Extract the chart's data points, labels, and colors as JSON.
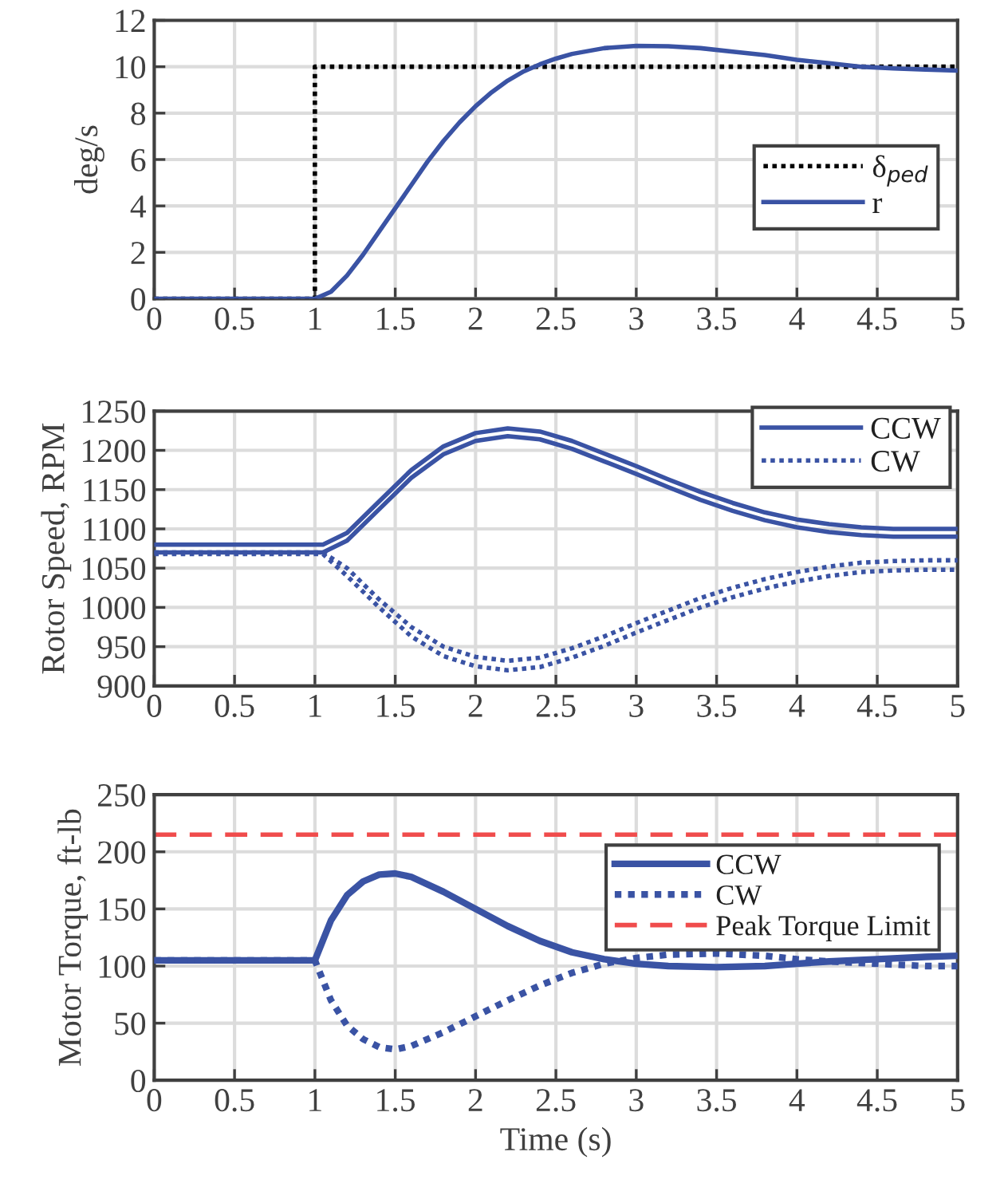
{
  "chart_data": [
    {
      "type": "line",
      "ylabel": "deg/s",
      "xlim": [
        0,
        5
      ],
      "ylim": [
        0,
        12
      ],
      "xticks": [
        0,
        0.5,
        1,
        1.5,
        2,
        2.5,
        3,
        3.5,
        4,
        4.5,
        5
      ],
      "yticks": [
        0,
        2,
        4,
        6,
        8,
        10,
        12
      ],
      "grid": true,
      "legend": "right",
      "series": [
        {
          "name": "δ$_{ped}$",
          "color": "#000000",
          "line_style": "dotted",
          "x": [
            0,
            1,
            1,
            5
          ],
          "values": [
            0,
            0,
            10,
            10
          ]
        },
        {
          "name": "r",
          "color": "#3a53a4",
          "line_style": "solid",
          "x": [
            0,
            1,
            1.1,
            1.2,
            1.3,
            1.4,
            1.5,
            1.6,
            1.7,
            1.8,
            1.9,
            2.0,
            2.1,
            2.2,
            2.3,
            2.4,
            2.5,
            2.6,
            2.8,
            3.0,
            3.2,
            3.4,
            3.6,
            3.8,
            4.0,
            4.2,
            4.4,
            4.6,
            4.8,
            5.0
          ],
          "values": [
            0,
            0,
            0.3,
            1.0,
            1.9,
            2.9,
            3.9,
            4.9,
            5.9,
            6.8,
            7.6,
            8.3,
            8.9,
            9.4,
            9.8,
            10.1,
            10.35,
            10.55,
            10.8,
            10.9,
            10.88,
            10.8,
            10.65,
            10.5,
            10.3,
            10.15,
            10.0,
            9.93,
            9.88,
            9.83
          ]
        }
      ]
    },
    {
      "type": "line",
      "ylabel": "Rotor Speed, RPM",
      "xlim": [
        0,
        5
      ],
      "ylim": [
        900,
        1250
      ],
      "xticks": [
        0,
        0.5,
        1,
        1.5,
        2,
        2.5,
        3,
        3.5,
        4,
        4.5,
        5
      ],
      "yticks": [
        900,
        950,
        1000,
        1050,
        1100,
        1150,
        1200,
        1250
      ],
      "grid": true,
      "legend": "top right",
      "series": [
        {
          "name": "CCW",
          "color": "#3a53a4",
          "line_style": "solid",
          "x": [
            0,
            1.05,
            1.2,
            1.4,
            1.6,
            1.8,
            2.0,
            2.2,
            2.4,
            2.6,
            2.8,
            3.0,
            3.2,
            3.4,
            3.6,
            3.8,
            4.0,
            4.2,
            4.4,
            4.6,
            4.8,
            5.0
          ],
          "values": [
            1080,
            1080,
            1095,
            1135,
            1175,
            1205,
            1222,
            1228,
            1224,
            1212,
            1196,
            1180,
            1163,
            1147,
            1133,
            1121,
            1112,
            1106,
            1102,
            1100,
            1100,
            1100
          ]
        },
        {
          "color": "#3a53a4",
          "line_style": "solid",
          "x": [
            0,
            1.05,
            1.2,
            1.4,
            1.6,
            1.8,
            2.0,
            2.2,
            2.4,
            2.6,
            2.8,
            3.0,
            3.2,
            3.4,
            3.6,
            3.8,
            4.0,
            4.2,
            4.4,
            4.6,
            4.8,
            5.0
          ],
          "values": [
            1070,
            1070,
            1085,
            1125,
            1165,
            1195,
            1212,
            1218,
            1214,
            1202,
            1186,
            1170,
            1153,
            1137,
            1123,
            1111,
            1102,
            1096,
            1092,
            1090,
            1090,
            1090
          ]
        },
        {
          "name": "CW",
          "color": "#3a53a4",
          "line_style": "dotted",
          "x": [
            0,
            1.05,
            1.2,
            1.4,
            1.6,
            1.8,
            2.0,
            2.2,
            2.4,
            2.6,
            2.8,
            3.0,
            3.2,
            3.4,
            3.6,
            3.8,
            4.0,
            4.2,
            4.4,
            4.6,
            4.8,
            5.0
          ],
          "values": [
            1070,
            1070,
            1050,
            1010,
            975,
            950,
            937,
            932,
            936,
            948,
            963,
            980,
            996,
            1012,
            1025,
            1036,
            1045,
            1052,
            1057,
            1059,
            1060,
            1060
          ]
        },
        {
          "color": "#3a53a4",
          "line_style": "dotted",
          "x": [
            0,
            1.05,
            1.2,
            1.4,
            1.6,
            1.8,
            2.0,
            2.2,
            2.4,
            2.6,
            2.8,
            3.0,
            3.2,
            3.4,
            3.6,
            3.8,
            4.0,
            4.2,
            4.4,
            4.6,
            4.8,
            5.0
          ],
          "values": [
            1068,
            1068,
            1040,
            1000,
            963,
            938,
            925,
            920,
            924,
            936,
            951,
            968,
            984,
            1000,
            1013,
            1024,
            1033,
            1040,
            1045,
            1047,
            1048,
            1048
          ]
        }
      ]
    },
    {
      "type": "line",
      "xlabel": "Time (s)",
      "ylabel": "Motor Torque, ft-lb",
      "xlim": [
        0,
        5
      ],
      "ylim": [
        0,
        250
      ],
      "xticks": [
        0,
        0.5,
        1,
        1.5,
        2,
        2.5,
        3,
        3.5,
        4,
        4.5,
        5
      ],
      "yticks": [
        0,
        50,
        100,
        150,
        200,
        250
      ],
      "grid": true,
      "legend": "right",
      "series": [
        {
          "name": "CCW",
          "color": "#3a53a4",
          "line_style": "solid",
          "x": [
            0,
            1,
            1.1,
            1.2,
            1.3,
            1.4,
            1.5,
            1.6,
            1.8,
            2.0,
            2.2,
            2.4,
            2.6,
            2.8,
            3.0,
            3.2,
            3.5,
            3.8,
            4.0,
            4.2,
            4.5,
            4.8,
            5.0
          ],
          "values": [
            105,
            105,
            140,
            162,
            174,
            180,
            181,
            178,
            165,
            150,
            135,
            122,
            112,
            106,
            102,
            100,
            99,
            100,
            102,
            104,
            106,
            108,
            109
          ]
        },
        {
          "name": "CW",
          "color": "#3a53a4",
          "line_style": "dotted",
          "x": [
            0,
            1,
            1.1,
            1.2,
            1.3,
            1.4,
            1.5,
            1.6,
            1.8,
            2.0,
            2.2,
            2.4,
            2.6,
            2.8,
            3.0,
            3.2,
            3.5,
            3.8,
            4.0,
            4.2,
            4.5,
            4.8,
            5.0
          ],
          "values": [
            105,
            105,
            70,
            48,
            36,
            29,
            27,
            30,
            42,
            56,
            70,
            83,
            94,
            102,
            107,
            110,
            111,
            109,
            106,
            104,
            102,
            100,
            100
          ]
        }
      ],
      "ref_lines": [
        {
          "axis": "y",
          "value": 215,
          "label": "Peak Torque Limit",
          "color": "#f04c4c",
          "line_style": "dashed"
        }
      ]
    }
  ]
}
